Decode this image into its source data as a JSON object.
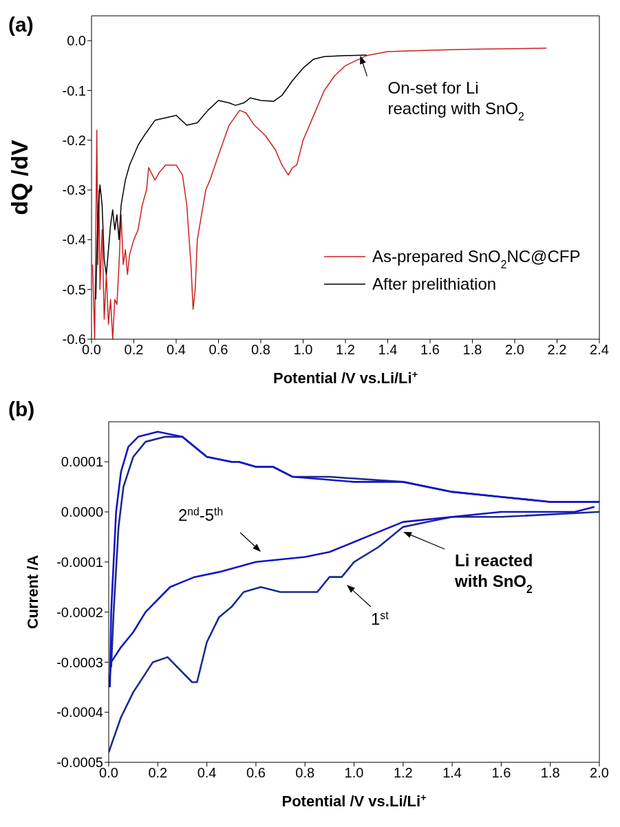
{
  "chart_data": [
    {
      "type": "line",
      "title": "(a)",
      "xlabel": "Potential /V vs.Li/Li$^{+}$",
      "ylabel": "dQ /dV",
      "xlim": [
        0,
        2.4
      ],
      "xticks": [
        {
          "value": 0,
          "label": "0.0"
        },
        0.2,
        0.4,
        0.6,
        0.8,
        {
          "value": 1,
          "label": "1.0"
        },
        1.2,
        1.4,
        1.6,
        1.8,
        {
          "value": 2,
          "label": "2.0"
        },
        2.2,
        2.4
      ],
      "ylim": [
        -0.6,
        0.05
      ],
      "yticks": [
        -0.6,
        -0.5,
        -0.4,
        -0.3,
        -0.2,
        -0.1,
        {
          "value": 0,
          "label": "0.0"
        }
      ],
      "legend": "bottom right",
      "marker": "none",
      "line_style": "solid",
      "annotations": [
        {
          "text": "On-set for Li reacting with SnO$_{2}$",
          "x": 1.27,
          "y": -0.03
        }
      ],
      "series": [
        {
          "name": "As-prepared SnO$_{2}$NC@CFP",
          "color": "#cc2020",
          "x": [
            0.005,
            0.015,
            0.02,
            0.025,
            0.03,
            0.035,
            0.04,
            0.05,
            0.06,
            0.07,
            0.08,
            0.09,
            0.1,
            0.11,
            0.12,
            0.13,
            0.14,
            0.15,
            0.16,
            0.17,
            0.18,
            0.2,
            0.22,
            0.24,
            0.26,
            0.27,
            0.3,
            0.32,
            0.35,
            0.4,
            0.43,
            0.45,
            0.47,
            0.48,
            0.49,
            0.5,
            0.52,
            0.54,
            0.56,
            0.6,
            0.65,
            0.7,
            0.73,
            0.77,
            0.82,
            0.87,
            0.9,
            0.93,
            0.95,
            0.97,
            1.0,
            1.05,
            1.1,
            1.15,
            1.2,
            1.3,
            1.4,
            1.6,
            1.8,
            2.0,
            2.15
          ],
          "values": [
            -0.45,
            -0.6,
            -0.4,
            -0.18,
            -0.45,
            -0.3,
            -0.5,
            -0.38,
            -0.56,
            -0.47,
            -0.57,
            -0.52,
            -0.6,
            -0.52,
            -0.53,
            -0.45,
            -0.35,
            -0.45,
            -0.42,
            -0.47,
            -0.43,
            -0.4,
            -0.38,
            -0.33,
            -0.3,
            -0.255,
            -0.28,
            -0.265,
            -0.25,
            -0.25,
            -0.27,
            -0.33,
            -0.45,
            -0.54,
            -0.5,
            -0.4,
            -0.35,
            -0.3,
            -0.28,
            -0.23,
            -0.17,
            -0.14,
            -0.145,
            -0.17,
            -0.19,
            -0.22,
            -0.25,
            -0.27,
            -0.255,
            -0.25,
            -0.2,
            -0.15,
            -0.1,
            -0.07,
            -0.05,
            -0.03,
            -0.022,
            -0.019,
            -0.017,
            -0.016,
            -0.015
          ]
        },
        {
          "name": "After prelithiation",
          "color": "#000000",
          "x": [
            0.02,
            0.03,
            0.04,
            0.05,
            0.06,
            0.07,
            0.08,
            0.09,
            0.1,
            0.11,
            0.12,
            0.13,
            0.14,
            0.16,
            0.18,
            0.2,
            0.22,
            0.25,
            0.3,
            0.35,
            0.4,
            0.45,
            0.5,
            0.55,
            0.6,
            0.65,
            0.68,
            0.72,
            0.75,
            0.8,
            0.86,
            0.9,
            0.95,
            1.0,
            1.05,
            1.1,
            1.2,
            1.3
          ],
          "values": [
            -0.52,
            -0.35,
            -0.29,
            -0.33,
            -0.44,
            -0.47,
            -0.42,
            -0.37,
            -0.34,
            -0.38,
            -0.35,
            -0.4,
            -0.33,
            -0.28,
            -0.25,
            -0.23,
            -0.21,
            -0.19,
            -0.16,
            -0.155,
            -0.15,
            -0.17,
            -0.165,
            -0.14,
            -0.12,
            -0.125,
            -0.13,
            -0.125,
            -0.115,
            -0.12,
            -0.122,
            -0.11,
            -0.08,
            -0.055,
            -0.037,
            -0.032,
            -0.03,
            -0.029
          ]
        }
      ]
    },
    {
      "type": "line",
      "title": "(b)",
      "xlabel": "Potential /V vs.Li/Li$^{+}$",
      "ylabel": "Current /A",
      "xlim": [
        0,
        2.0
      ],
      "xticks": [
        {
          "value": 0,
          "label": "0.0"
        },
        0.2,
        0.4,
        0.6,
        0.8,
        {
          "value": 1,
          "label": "1.0"
        },
        1.2,
        1.4,
        1.6,
        1.8,
        {
          "value": 2,
          "label": "2.0"
        }
      ],
      "ylim": [
        -0.0005,
        0.00018
      ],
      "yticks": [
        -0.0005,
        -0.0004,
        -0.0003,
        -0.0002,
        -0.0001,
        {
          "value": 0,
          "label": "0.0000"
        },
        0.0001
      ],
      "marker": "none",
      "line_style": "solid",
      "annotations": [
        "2$^{nd}$-5$^{th}$",
        "1$^{st}$",
        "Li reacted with SnO$_{2}$"
      ],
      "series": [
        {
          "color": "#1c2a8c",
          "x": [
            0.0,
            0.05,
            0.1,
            0.18,
            0.24,
            0.3,
            0.34,
            0.36,
            0.4,
            0.45,
            0.5,
            0.55,
            0.62,
            0.7,
            0.75,
            0.8,
            0.85,
            0.9,
            0.95,
            1.0,
            1.1,
            1.2,
            1.3,
            1.4,
            1.6,
            2.0
          ],
          "values": [
            -0.00048,
            -0.00041,
            -0.00036,
            -0.0003,
            -0.00029,
            -0.00032,
            -0.00034,
            -0.00034,
            -0.00026,
            -0.00021,
            -0.00019,
            -0.00016,
            -0.00015,
            -0.00016,
            -0.00016,
            -0.00016,
            -0.00016,
            -0.00013,
            -0.00013,
            -0.0001,
            -7e-05,
            -3e-05,
            -2e-05,
            -1e-05,
            -1e-05,
            0.0
          ]
        },
        {
          "color": "#1c2a8c",
          "x": [
            0.01,
            0.02,
            0.04,
            0.06,
            0.1,
            0.15,
            0.23,
            0.3,
            0.4,
            0.5,
            0.53,
            0.6,
            0.67,
            0.75,
            0.9,
            1.2,
            1.4,
            1.6,
            1.8,
            2.0
          ],
          "values": [
            -0.00031,
            -0.0002,
            -3e-05,
            5e-05,
            0.00011,
            0.00014,
            0.00015,
            0.00015,
            0.00011,
            0.0001,
            0.0001,
            9e-05,
            9e-05,
            7e-05,
            7e-05,
            6e-05,
            4e-05,
            3e-05,
            2e-05,
            2e-05
          ]
        },
        {
          "color": "#1414c8",
          "x": [
            0.0,
            0.01,
            0.05,
            0.1,
            0.15,
            0.25,
            0.35,
            0.45,
            0.6,
            0.8,
            0.9,
            1.0,
            1.1,
            1.2,
            1.4,
            1.6,
            1.8,
            1.9,
            1.98
          ],
          "values": [
            -0.00035,
            -0.0003,
            -0.00027,
            -0.00024,
            -0.0002,
            -0.00015,
            -0.00013,
            -0.00012,
            -0.0001,
            -9e-05,
            -8e-05,
            -6e-05,
            -4e-05,
            -2e-05,
            -1e-05,
            0.0,
            0.0,
            0.0,
            1e-05
          ]
        },
        {
          "color": "#1414c8",
          "x": [
            0.005,
            0.01,
            0.03,
            0.05,
            0.08,
            0.12,
            0.2,
            0.3,
            0.4,
            0.5,
            0.53,
            0.6,
            0.67,
            0.75,
            1.0,
            1.2,
            1.4,
            1.6,
            1.8,
            2.0
          ],
          "values": [
            -0.00035,
            -0.0002,
            0.0,
            8e-05,
            0.00013,
            0.00015,
            0.00016,
            0.00015,
            0.00011,
            0.0001,
            0.0001,
            9e-05,
            9e-05,
            7e-05,
            6e-05,
            6e-05,
            4e-05,
            3e-05,
            2e-05,
            2e-05
          ]
        }
      ]
    }
  ]
}
